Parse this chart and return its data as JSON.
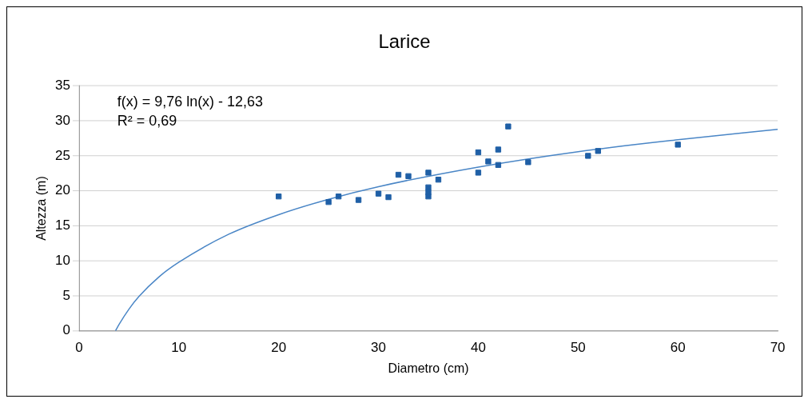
{
  "chart_data": {
    "type": "scatter",
    "title": "Larice",
    "xlabel": "Diametro (cm)",
    "ylabel": "Altezza (m)",
    "xlim": [
      0,
      70
    ],
    "xticks": [
      0,
      10,
      20,
      30,
      40,
      50,
      60,
      70
    ],
    "ylim": [
      0,
      35
    ],
    "yticks": [
      0,
      5,
      10,
      15,
      20,
      25,
      30,
      35
    ],
    "grid": "y",
    "legend": false,
    "marker": "square",
    "annotations": [
      "f(x) = 9,76 ln(x) - 12,63",
      "R² = 0,69"
    ],
    "series": [
      {
        "type": "scatter",
        "color": "#1f5fa6",
        "x": [
          20,
          25,
          26,
          28,
          30,
          31,
          32,
          33,
          35,
          35,
          35,
          35,
          36,
          40,
          40,
          41,
          42,
          42,
          43,
          45,
          51,
          52,
          60
        ],
        "values": [
          19.2,
          18.4,
          19.2,
          18.7,
          19.6,
          19.1,
          22.3,
          22.1,
          22.6,
          20.5,
          19.8,
          19.2,
          21.6,
          25.5,
          22.6,
          24.2,
          25.9,
          23.7,
          29.2,
          24.1,
          25.0,
          25.7,
          26.6
        ]
      },
      {
        "type": "line",
        "color": "#4a86c6",
        "marker": "none",
        "x": [
          3.65,
          4,
          5,
          6,
          8,
          10,
          15,
          20,
          25,
          30,
          40,
          50,
          60,
          70
        ],
        "values": [
          0,
          0.9,
          3.1,
          4.9,
          7.7,
          9.8,
          13.8,
          16.6,
          18.8,
          20.6,
          23.4,
          25.6,
          27.3,
          28.8
        ]
      }
    ]
  }
}
